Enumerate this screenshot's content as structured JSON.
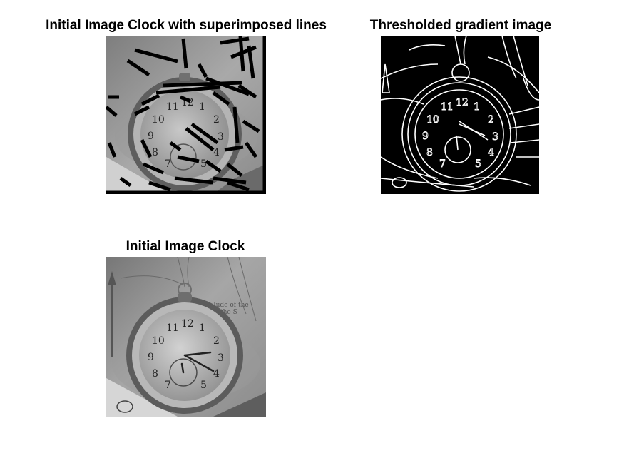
{
  "figure": {
    "background": "#ffffff",
    "panels": [
      {
        "id": "top-left",
        "title": "Initial Image Clock with superimposed lines",
        "image": "grayscale pocket watch photo with thick black detected line segments overlaid",
        "numerals": [
          "11",
          "12",
          "1",
          "10",
          "2",
          "9",
          "3",
          "8",
          "4",
          "7",
          "5"
        ]
      },
      {
        "id": "top-right",
        "title": "Thresholded gradient image",
        "image": "binary edge map (white edges on black) of pocket watch",
        "numerals": [
          "11",
          "12",
          "1",
          "10",
          "2",
          "9",
          "3",
          "8",
          "4",
          "7",
          "5"
        ]
      },
      {
        "id": "bottom-left",
        "title": "Initial Image Clock",
        "image": "grayscale pocket watch photo",
        "numerals": [
          "11",
          "12",
          "1",
          "10",
          "2",
          "9",
          "3",
          "8",
          "4",
          "7",
          "5"
        ]
      }
    ]
  }
}
